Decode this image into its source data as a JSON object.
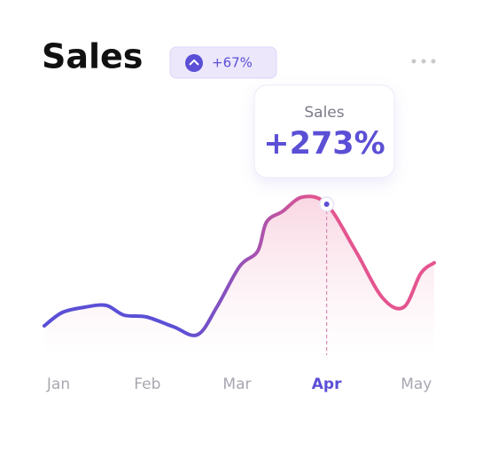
{
  "header": {
    "title": "Sales",
    "badge": "+67%"
  },
  "chart_data": {
    "type": "line",
    "series": [
      {
        "name": "Sales",
        "colors": [
          "#5b4fd6",
          "#e4558f"
        ],
        "x": [
          -0.15,
          0.05,
          0.3,
          0.54,
          0.74,
          0.99,
          1.29,
          1.56,
          1.78,
          2.03,
          2.23,
          2.33,
          2.51,
          2.73,
          3.0,
          3.32,
          3.62,
          3.86,
          4.05,
          4.2
        ],
        "values": [
          16.5,
          24,
          27,
          28,
          22.5,
          21.5,
          16,
          11.5,
          27.5,
          50,
          58.5,
          75,
          81,
          89,
          85,
          59,
          32.5,
          27,
          46,
          52
        ]
      }
    ],
    "xlim": [
      -0.15,
      4.2
    ],
    "ylim": [
      0,
      100
    ],
    "xticks": [
      {
        "value": 0,
        "label": "Jan"
      },
      {
        "value": 1,
        "label": "Feb"
      },
      {
        "value": 2,
        "label": "Mar"
      },
      {
        "value": 3,
        "label": "Apr"
      },
      {
        "value": 4,
        "label": "May"
      }
    ],
    "tooltip": {
      "x": 3,
      "title": "Sales",
      "text": "+273%"
    }
  }
}
